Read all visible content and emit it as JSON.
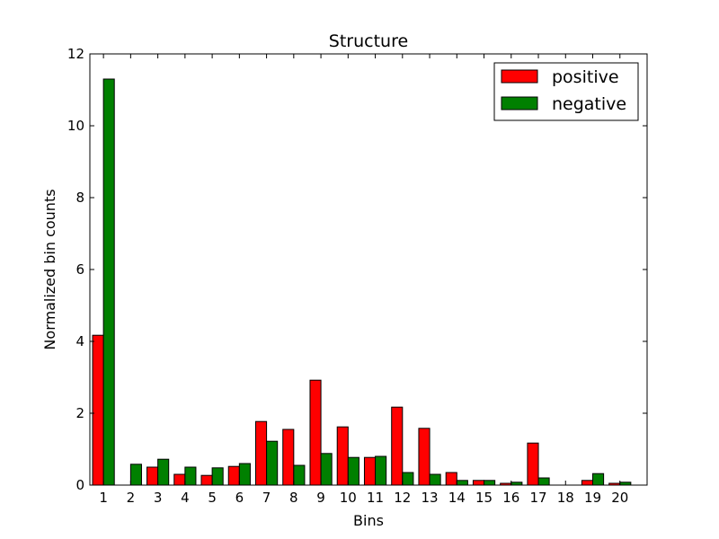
{
  "chart_data": {
    "type": "bar",
    "title": "Structure",
    "xlabel": "Bins",
    "ylabel": "Normalized bin counts",
    "categories": [
      "1",
      "2",
      "3",
      "4",
      "5",
      "6",
      "7",
      "8",
      "9",
      "10",
      "11",
      "12",
      "13",
      "14",
      "15",
      "16",
      "17",
      "18",
      "19",
      "20"
    ],
    "ylim": [
      0,
      12
    ],
    "yticks": [
      "0",
      "2",
      "4",
      "6",
      "8",
      "10",
      "12"
    ],
    "legend_position": "top-right",
    "grid": false,
    "series": [
      {
        "name": "positive",
        "color": "#ff0000",
        "values": [
          4.17,
          0.0,
          0.5,
          0.3,
          0.27,
          0.52,
          1.77,
          1.55,
          2.92,
          1.62,
          0.77,
          2.17,
          1.58,
          0.35,
          0.13,
          0.05,
          1.17,
          0.0,
          0.13,
          0.05
        ]
      },
      {
        "name": "negative",
        "color": "#008000",
        "values": [
          11.3,
          0.58,
          0.72,
          0.5,
          0.48,
          0.6,
          1.22,
          0.55,
          0.88,
          0.77,
          0.8,
          0.35,
          0.3,
          0.13,
          0.13,
          0.08,
          0.2,
          0.0,
          0.32,
          0.08
        ]
      }
    ]
  }
}
